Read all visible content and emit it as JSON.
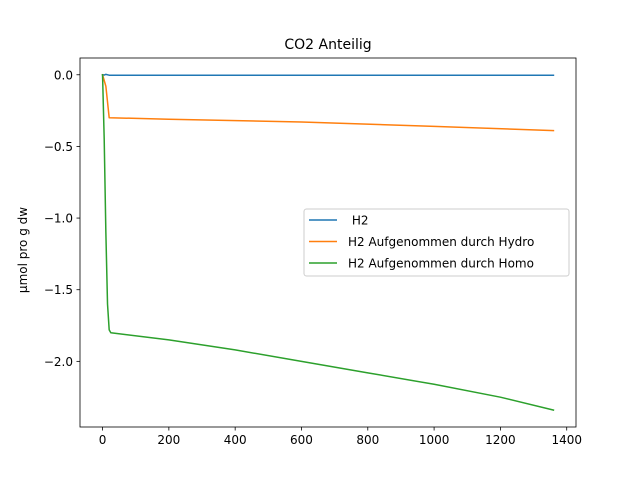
{
  "chart_data": {
    "type": "line",
    "title": "CO2 Anteilig",
    "xlabel": "",
    "ylabel": "µmol pro g dw",
    "xlim": [
      -68,
      1428
    ],
    "ylim": [
      -2.458,
      0.117
    ],
    "xticks": [
      {
        "value": 0,
        "label": "0"
      },
      {
        "value": 200,
        "label": "200"
      },
      {
        "value": 400,
        "label": "400"
      },
      {
        "value": 600,
        "label": "600"
      },
      {
        "value": 800,
        "label": "800"
      },
      {
        "value": 1000,
        "label": "1000"
      },
      {
        "value": 1200,
        "label": "1200"
      },
      {
        "value": 1400,
        "label": "1400"
      }
    ],
    "yticks": [
      {
        "value": 0.0,
        "label": "0.0"
      },
      {
        "value": -0.5,
        "label": "−0.5"
      },
      {
        "value": -1.0,
        "label": "−1.0"
      },
      {
        "value": -1.5,
        "label": "−1.5"
      },
      {
        "value": -2.0,
        "label": "−2.0"
      }
    ],
    "grid": false,
    "legend_position": "center-right",
    "series": [
      {
        "name": " H2",
        "color": "#1f77b4",
        "points": [
          [
            0,
            0.0
          ],
          [
            5,
            -0.002
          ],
          [
            10,
            0.003
          ],
          [
            20,
            -0.003
          ],
          [
            30,
            -0.003
          ],
          [
            100,
            -0.003
          ],
          [
            1360,
            -0.003
          ]
        ]
      },
      {
        "name": "H2 Aufgenommen durch Hydro",
        "color": "#ff7f0e",
        "points": [
          [
            0,
            0.0
          ],
          [
            10,
            -0.08
          ],
          [
            20,
            -0.3
          ],
          [
            200,
            -0.31
          ],
          [
            600,
            -0.33
          ],
          [
            1000,
            -0.36
          ],
          [
            1360,
            -0.39
          ]
        ]
      },
      {
        "name": "H2 Aufgenommen durch Homo",
        "color": "#2ca02c",
        "points": [
          [
            0,
            0.0
          ],
          [
            5,
            -0.45
          ],
          [
            10,
            -1.1
          ],
          [
            15,
            -1.6
          ],
          [
            20,
            -1.78
          ],
          [
            25,
            -1.8
          ],
          [
            200,
            -1.85
          ],
          [
            400,
            -1.92
          ],
          [
            600,
            -2.0
          ],
          [
            800,
            -2.08
          ],
          [
            1000,
            -2.16
          ],
          [
            1200,
            -2.25
          ],
          [
            1360,
            -2.34
          ]
        ]
      }
    ]
  }
}
